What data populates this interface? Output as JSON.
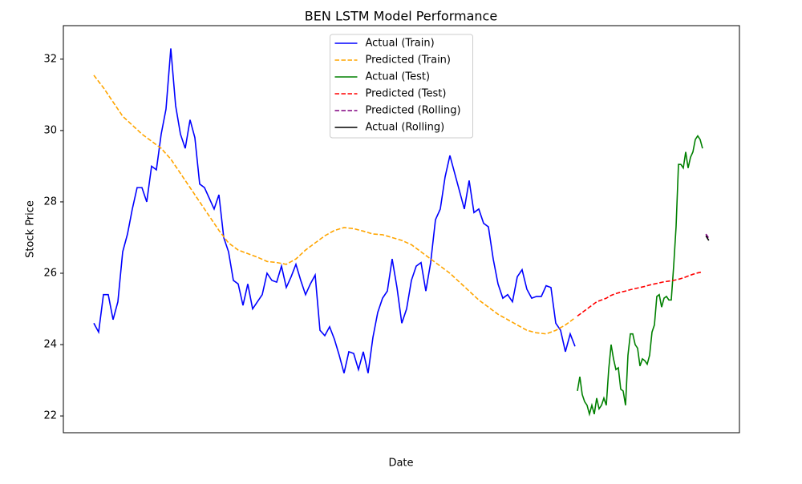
{
  "chart_data": {
    "type": "line",
    "title": "BEN LSTM Model Performance",
    "x_label": "Date",
    "y_label": "Stock Price",
    "xlim": [
      -6.33,
      134.17
    ],
    "ylim": [
      21.53,
      32.94
    ],
    "yticks": [
      22,
      24,
      26,
      28,
      30,
      32
    ],
    "grid": false,
    "legend": "upper center",
    "series": [
      {
        "name": "Actual (Train)",
        "color": "#0000ff",
        "linestyle": "solid",
        "x": [
          0,
          1,
          2,
          3,
          4,
          5,
          6,
          7,
          8,
          9,
          10,
          11,
          12,
          13,
          14,
          15,
          16,
          17,
          18,
          19,
          20,
          21,
          22,
          23,
          24,
          25,
          26,
          27,
          28,
          29,
          30,
          31,
          32,
          33,
          34,
          35,
          36,
          37,
          38,
          39,
          40,
          41,
          42,
          43,
          44,
          45,
          46,
          47,
          48,
          49,
          50,
          51,
          52,
          53,
          54,
          55,
          56,
          57,
          58,
          59,
          60,
          61,
          62,
          63,
          64,
          65,
          66,
          67,
          68,
          69,
          70,
          71,
          72,
          73,
          74,
          75,
          76,
          77,
          78,
          79,
          80,
          81,
          82,
          83,
          84,
          85,
          86,
          87,
          88,
          89,
          90,
          91,
          92,
          93,
          94,
          95,
          96,
          97,
          98,
          99,
          100
        ],
        "values": [
          24.6,
          24.35,
          25.4,
          25.4,
          24.7,
          25.2,
          26.6,
          27.1,
          27.8,
          28.4,
          28.4,
          28.0,
          29.0,
          28.9,
          29.9,
          30.6,
          32.3,
          30.7,
          29.9,
          29.5,
          30.3,
          29.8,
          28.5,
          28.4,
          28.1,
          27.8,
          28.2,
          27.0,
          26.6,
          25.8,
          25.7,
          25.1,
          25.7,
          25.0,
          25.2,
          25.4,
          26.0,
          25.8,
          25.75,
          26.2,
          25.6,
          25.9,
          26.25,
          25.8,
          25.4,
          25.7,
          25.95,
          24.4,
          24.25,
          24.5,
          24.15,
          23.7,
          23.2,
          23.8,
          23.75,
          23.3,
          23.8,
          23.2,
          24.2,
          24.9,
          25.3,
          25.5,
          26.4,
          25.6,
          24.6,
          25.0,
          25.8,
          26.2,
          26.3,
          25.5,
          26.3,
          27.5,
          27.8,
          28.7,
          29.3,
          28.8,
          28.3,
          27.8,
          28.6,
          27.7,
          27.8,
          27.4,
          27.3,
          26.4,
          25.7,
          25.3,
          25.4,
          25.2,
          25.9,
          26.1,
          25.55,
          25.3,
          25.35,
          25.35,
          25.65,
          25.6,
          24.6,
          24.4,
          23.8,
          24.3,
          23.95
        ]
      },
      {
        "name": "Predicted (Train)",
        "color": "#ffa500",
        "linestyle": "dashed",
        "x": [
          0,
          2,
          4,
          6,
          8,
          10,
          12,
          14,
          16,
          18,
          20,
          22,
          24,
          26,
          28,
          30,
          32,
          34,
          36,
          38,
          40,
          42,
          44,
          46,
          48,
          50,
          52,
          54,
          56,
          58,
          60,
          62,
          64,
          66,
          68,
          70,
          72,
          74,
          76,
          78,
          80,
          82,
          84,
          86,
          88,
          90,
          92,
          94,
          96,
          98,
          100
        ],
        "values": [
          31.55,
          31.2,
          30.8,
          30.4,
          30.15,
          29.9,
          29.7,
          29.5,
          29.2,
          28.8,
          28.4,
          28.0,
          27.6,
          27.2,
          26.85,
          26.65,
          26.55,
          26.45,
          26.33,
          26.3,
          26.25,
          26.4,
          26.65,
          26.85,
          27.05,
          27.2,
          27.28,
          27.25,
          27.18,
          27.1,
          27.08,
          27.0,
          26.92,
          26.8,
          26.6,
          26.4,
          26.2,
          26.0,
          25.75,
          25.5,
          25.25,
          25.05,
          24.85,
          24.7,
          24.55,
          24.4,
          24.33,
          24.3,
          24.4,
          24.55,
          24.75
        ]
      },
      {
        "name": "Actual (Test)",
        "color": "#008000",
        "linestyle": "solid",
        "x": [
          100.5,
          101,
          101.5,
          102,
          102.5,
          103,
          103.5,
          104,
          104.5,
          105,
          105.5,
          106,
          106.5,
          107,
          107.5,
          108,
          108.5,
          109,
          109.5,
          110,
          110.5,
          111,
          111.5,
          112,
          112.5,
          113,
          113.5,
          114,
          114.5,
          115,
          115.5,
          116,
          116.5,
          117,
          117.5,
          118,
          118.5,
          119,
          119.5,
          120,
          120.5,
          121,
          121.5,
          122,
          122.5,
          123,
          123.5,
          124,
          124.5,
          125,
          125.5,
          126,
          126.5
        ],
        "values": [
          22.7,
          23.1,
          22.6,
          22.4,
          22.3,
          22.05,
          22.3,
          22.05,
          22.5,
          22.2,
          22.3,
          22.5,
          22.3,
          23.3,
          24.0,
          23.6,
          23.3,
          23.35,
          22.75,
          22.7,
          22.3,
          23.7,
          24.3,
          24.3,
          24.0,
          23.9,
          23.4,
          23.6,
          23.55,
          23.45,
          23.7,
          24.35,
          24.55,
          25.35,
          25.4,
          25.05,
          25.3,
          25.35,
          25.25,
          25.25,
          26.2,
          27.3,
          29.05,
          29.05,
          28.95,
          29.4,
          28.95,
          29.25,
          29.4,
          29.75,
          29.85,
          29.75,
          29.5
        ]
      },
      {
        "name": "Predicted (Test)",
        "color": "#ff0000",
        "linestyle": "dashed",
        "x": [
          100.5,
          101.5,
          102.5,
          103.5,
          104.5,
          105.5,
          106.5,
          107.5,
          108.5,
          109.5,
          110.5,
          111.5,
          112.5,
          113.5,
          114.5,
          115.5,
          116.5,
          117.5,
          118.5,
          119.5,
          120.5,
          121.5,
          122.5,
          123.5,
          124.5,
          125.5,
          126.5
        ],
        "values": [
          24.8,
          24.9,
          25.0,
          25.1,
          25.2,
          25.25,
          25.3,
          25.38,
          25.43,
          25.47,
          25.5,
          25.54,
          25.57,
          25.6,
          25.63,
          25.67,
          25.7,
          25.73,
          25.76,
          25.78,
          25.8,
          25.83,
          25.87,
          25.92,
          25.97,
          26.01,
          26.04
        ]
      },
      {
        "name": "Predicted (Rolling)",
        "color": "#800080",
        "linestyle": "dashed",
        "x": [
          127.2,
          127.8
        ],
        "values": [
          27.1,
          26.98
        ]
      },
      {
        "name": "Actual (Rolling)",
        "color": "#000000",
        "linestyle": "solid",
        "x": [
          127.2,
          127.8
        ],
        "values": [
          27.05,
          26.92
        ]
      }
    ]
  }
}
